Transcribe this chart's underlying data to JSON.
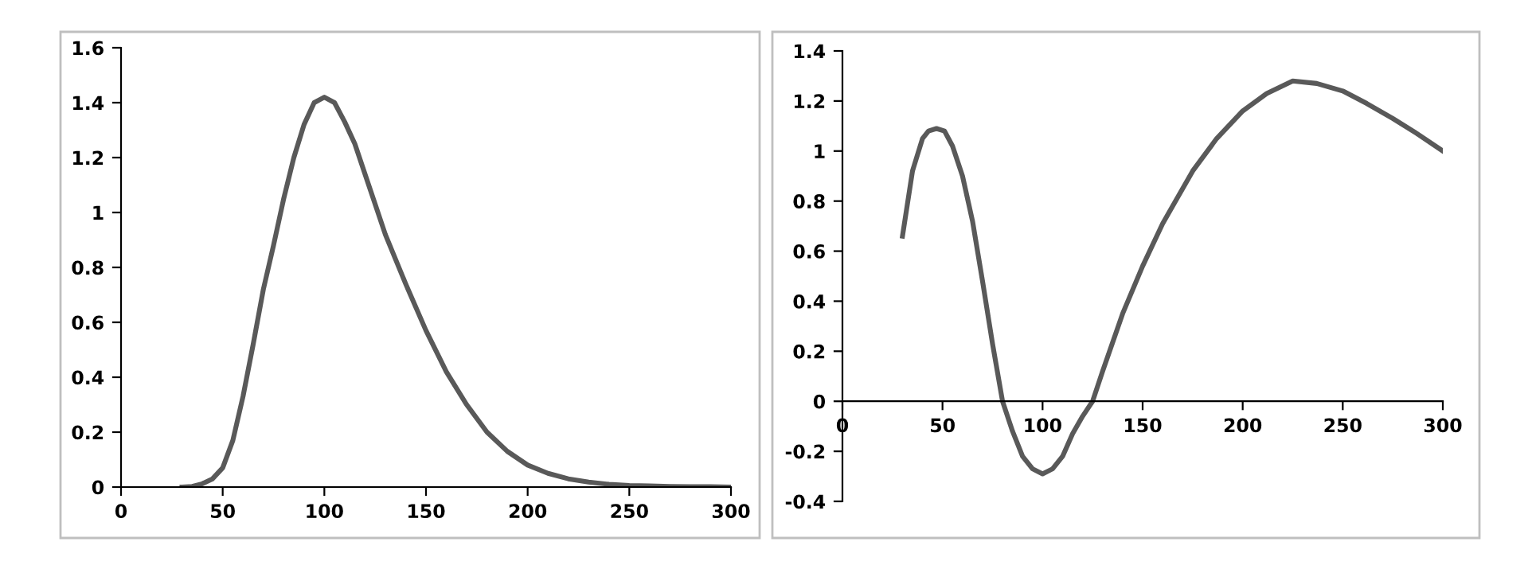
{
  "chart_data": [
    {
      "type": "line",
      "x": [
        30,
        35,
        40,
        45,
        50,
        55,
        60,
        65,
        70,
        75,
        80,
        85,
        90,
        95,
        100,
        105,
        110,
        115,
        120,
        130,
        140,
        150,
        160,
        170,
        180,
        190,
        200,
        210,
        220,
        230,
        240,
        250,
        260,
        270,
        280,
        290,
        300
      ],
      "series": [
        {
          "color": "#595959",
          "values": [
            0,
            0.002,
            0.012,
            0.03,
            0.07,
            0.17,
            0.33,
            0.52,
            0.72,
            0.88,
            1.05,
            1.2,
            1.32,
            1.4,
            1.42,
            1.4,
            1.33,
            1.25,
            1.14,
            0.92,
            0.74,
            0.57,
            0.42,
            0.3,
            0.2,
            0.13,
            0.08,
            0.05,
            0.03,
            0.018,
            0.01,
            0.006,
            0.004,
            0.002,
            0.001,
            0.001,
            0
          ]
        }
      ],
      "xlim": [
        0,
        300
      ],
      "xticks": [
        0,
        50,
        100,
        150,
        200,
        250,
        300
      ],
      "ylim": [
        0,
        1.6
      ],
      "yticks": [
        0,
        0.2,
        0.4,
        0.6,
        0.8,
        1,
        1.2,
        1.4,
        1.6
      ],
      "marker": "none",
      "line_style": "solid"
    },
    {
      "type": "line",
      "x": [
        30,
        35,
        40,
        43,
        47,
        51,
        55,
        60,
        65,
        70,
        75,
        80,
        85,
        90,
        95,
        100,
        105,
        110,
        115,
        120,
        125,
        130,
        140,
        150,
        160,
        175,
        187,
        200,
        212,
        225,
        237,
        250,
        262,
        275,
        287,
        300
      ],
      "series": [
        {
          "color": "#595959",
          "values": [
            0.66,
            0.92,
            1.05,
            1.08,
            1.09,
            1.08,
            1.02,
            0.9,
            0.72,
            0.48,
            0.23,
            0,
            -0.12,
            -0.22,
            -0.27,
            -0.29,
            -0.27,
            -0.22,
            -0.13,
            -0.06,
            0,
            0.12,
            0.35,
            0.54,
            0.71,
            0.92,
            1.05,
            1.16,
            1.23,
            1.28,
            1.27,
            1.24,
            1.19,
            1.13,
            1.07,
            1.0
          ]
        }
      ],
      "xlim": [
        0,
        300
      ],
      "xticks": [
        0,
        50,
        100,
        150,
        200,
        250,
        300
      ],
      "ylim": [
        -0.4,
        1.4
      ],
      "yticks": [
        -0.4,
        -0.2,
        0,
        0.2,
        0.4,
        0.6,
        0.8,
        1,
        1.2,
        1.4
      ],
      "marker": "none",
      "line_style": "solid"
    }
  ]
}
